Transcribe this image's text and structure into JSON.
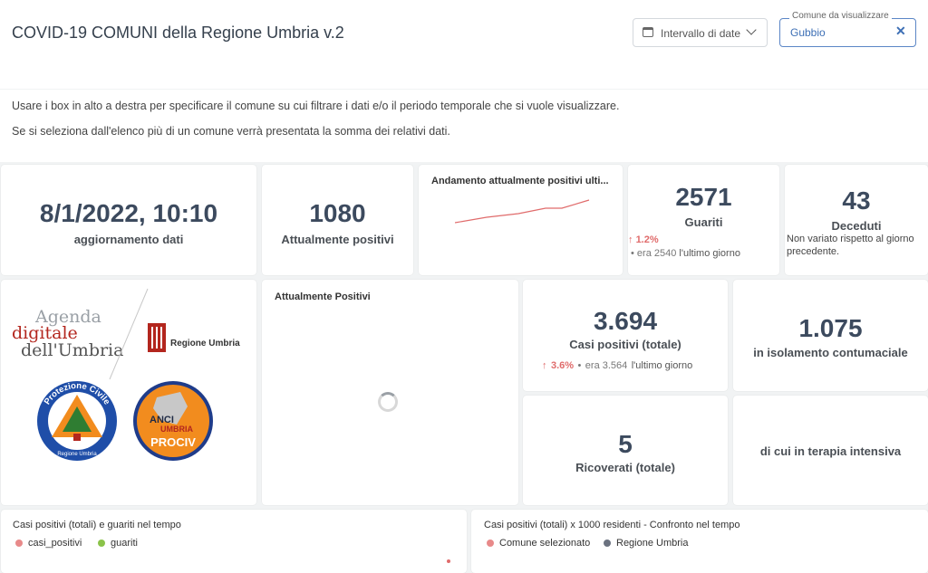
{
  "header": {
    "title": "COVID-19 COMUNI della Regione Umbria v.2",
    "date_button_label": "Intervallo di date",
    "comune_field_label": "Comune da visualizzare",
    "comune_value": "Gubbio"
  },
  "info": {
    "line1": "Usare i box in alto a destra per specificare il comune su cui filtrare i dati e/o il periodo temporale che si vuole visualizzare.",
    "line2": "Se si seleziona dall'elenco più di un comune verrà presentata la somma dei relativi dati."
  },
  "kpi": {
    "update_value": "8/1/2022, 10:10",
    "update_label": "aggiornamento dati",
    "positivi_value": "1080",
    "positivi_label": "Attualmente positivi",
    "trend_title": "Andamento attualmente positivi ulti...",
    "guariti_value": "2571",
    "guariti_label": "Guariti",
    "guariti_delta": "1.2%",
    "guariti_prev": "era 2540",
    "guariti_period": "l'ultimo giorno",
    "deceduti_value": "43",
    "deceduti_label": "Deceduti",
    "deceduti_note": "Non variato rispetto al giorno precedente.",
    "casi_value": "3.694",
    "casi_label": "Casi positivi (totale)",
    "casi_delta": "3.6%",
    "casi_prev": "era 3.564",
    "casi_period": "l'ultimo giorno",
    "isolamento_value": "1.075",
    "isolamento_label": "in isolamento contumaciale",
    "ricoverati_value": "5",
    "ricoverati_label": "Ricoverati (totale)",
    "terapia_label": "di cui in terapia intensiva"
  },
  "logos": {
    "agenda_1": "Agenda",
    "agenda_2": "digitale",
    "agenda_3": "dell'Umbria",
    "regione": "Regione Umbria",
    "protezione_ring": "Protezione Civile",
    "protezione_small": "Regione Umbria",
    "anci_1": "ANCI",
    "anci_2": "UMBRIA",
    "anci_3": "PROCIV"
  },
  "panels": {
    "positivi_chart_title": "Attualmente Positivi",
    "chart1_title": "Casi positivi (totali) e guariti nel tempo",
    "chart1_legend": [
      "casi_positivi",
      "guariti"
    ],
    "chart2_title": "Casi positivi (totali) x 1000 residenti - Confronto nel tempo",
    "chart2_legend": [
      "Comune selezionato",
      "Regione Umbria"
    ]
  },
  "colors": {
    "red": "#e06b6b",
    "green": "#8bc34a",
    "grey": "#6b7280",
    "accent": "#3d6fb5"
  }
}
